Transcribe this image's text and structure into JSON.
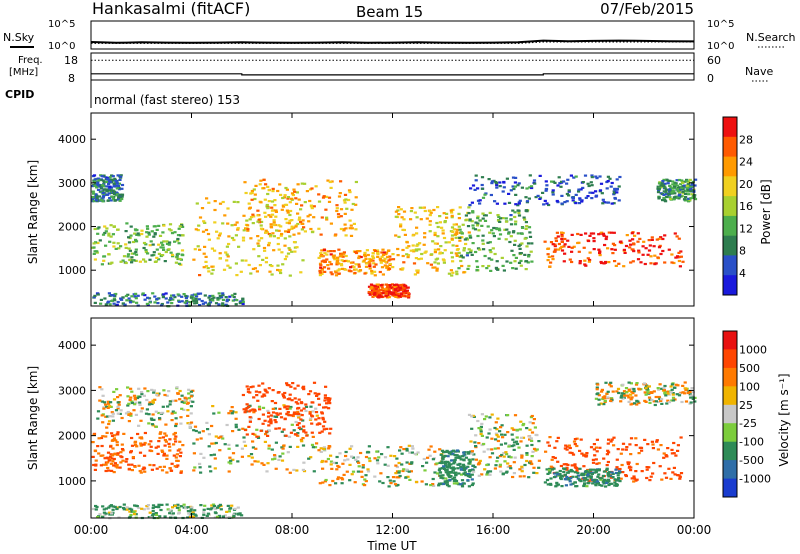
{
  "header": {
    "station": "Hankasalmi (fitACF)",
    "beam": "Beam 15",
    "date": "07/Feb/2015"
  },
  "top_panels": {
    "nsky_label": "N.Sky",
    "nsearch_label": "N.Search",
    "noise_ticks_left": [
      "10^5",
      "10^0"
    ],
    "noise_ticks_right": [
      "10^5",
      "10^0"
    ],
    "freq_label_line1": "Freq.",
    "freq_label_line2": "[MHz]",
    "freq_ticks": [
      "18",
      "8"
    ],
    "nave_label": "Nave",
    "nave_ticks": [
      "60",
      "0"
    ],
    "cpid_label": "CPID",
    "cpid_text": "normal (fast stereo) 153"
  },
  "colors": {
    "power_scale": [
      "#1a1adc",
      "#2a50c8",
      "#2e7d4f",
      "#4cae4c",
      "#a8d030",
      "#f0d020",
      "#ff9a00",
      "#ff5a00",
      "#ee1010"
    ],
    "velocity_scale": [
      "#1a3ccf",
      "#2f6ea8",
      "#2e8b57",
      "#7ccd3c",
      "#c8c8c8",
      "#f0b400",
      "#ff7a00",
      "#ff4500",
      "#e81010"
    ]
  },
  "chart_data": [
    {
      "type": "line",
      "title": "N.Sky",
      "x": [
        0,
        1,
        2,
        3,
        4,
        5,
        6,
        7,
        8,
        9,
        10,
        11,
        12,
        13,
        14,
        15,
        16,
        17,
        18,
        19,
        20,
        21,
        22,
        23,
        24
      ],
      "series": [
        {
          "name": "N.Sky",
          "values": [
            0.25,
            0.22,
            0.24,
            0.23,
            0.22,
            0.23,
            0.24,
            0.23,
            0.22,
            0.23,
            0.24,
            0.22,
            0.23,
            0.24,
            0.23,
            0.22,
            0.23,
            0.24,
            0.3,
            0.28,
            0.29,
            0.3,
            0.29,
            0.28,
            0.27
          ]
        },
        {
          "name": "N.Search",
          "values": [
            0.2,
            0.2,
            0.2,
            0.2,
            0.2,
            0.2,
            0.2,
            0.2,
            0.2,
            0.2,
            0.2,
            0.2,
            0.2,
            0.2,
            0.2,
            0.2,
            0.2,
            0.2,
            0.25,
            0.25,
            0.25,
            0.25,
            0.25,
            0.25,
            0.25
          ]
        }
      ],
      "xlim": [
        0,
        24
      ],
      "ylim": [
        0,
        1
      ]
    },
    {
      "type": "line",
      "title": "Freq.",
      "x": [
        0,
        6,
        6,
        18,
        18,
        24
      ],
      "series": [
        {
          "name": "Freq.",
          "values": [
            10.3,
            10.3,
            9.9,
            9.9,
            10.3,
            10.3
          ]
        },
        {
          "name": "Nave",
          "values": [
            35,
            35,
            35,
            35,
            35,
            35
          ]
        }
      ],
      "xlabel": "",
      "ylabel": "[MHz]",
      "xlim": [
        0,
        24
      ],
      "ylim": [
        8,
        18
      ]
    },
    {
      "type": "heatmap",
      "xlabel": "",
      "ylabel": "Slant Range [km]",
      "colorbar_label": "Power [dB]",
      "colorbar_ticks": [
        "28",
        "24",
        "20",
        "16",
        "12",
        "8",
        "4"
      ],
      "xlim": [
        0,
        24
      ],
      "ylim": [
        180,
        4600
      ],
      "y_ticks": [
        "4000",
        "3000",
        "2000",
        "1000"
      ],
      "x_ticks": [
        "00:00",
        "04:00",
        "08:00",
        "12:00",
        "16:00",
        "20:00",
        "00:00"
      ],
      "echo_regions": [
        {
          "x": [
            0.0,
            3.6
          ],
          "y": [
            1150,
            2100
          ],
          "value": 14
        },
        {
          "x": [
            0.0,
            1.2
          ],
          "y": [
            2600,
            3200
          ],
          "value": 8
        },
        {
          "x": [
            4.0,
            8.5
          ],
          "y": [
            900,
            2700
          ],
          "value": 20
        },
        {
          "x": [
            6.0,
            10.5
          ],
          "y": [
            1800,
            3100
          ],
          "value": 22
        },
        {
          "x": [
            9.0,
            12.0
          ],
          "y": [
            900,
            1500
          ],
          "value": 24
        },
        {
          "x": [
            11.0,
            12.6
          ],
          "y": [
            400,
            700
          ],
          "value": 28
        },
        {
          "x": [
            12.0,
            15.0
          ],
          "y": [
            900,
            2500
          ],
          "value": 20
        },
        {
          "x": [
            14.5,
            17.5
          ],
          "y": [
            1000,
            2400
          ],
          "value": 12
        },
        {
          "x": [
            15.0,
            21.0
          ],
          "y": [
            2500,
            3200
          ],
          "value": 6
        },
        {
          "x": [
            18.0,
            23.5
          ],
          "y": [
            1100,
            1900
          ],
          "value": 28
        },
        {
          "x": [
            22.5,
            24.0
          ],
          "y": [
            2600,
            3100
          ],
          "value": 10
        },
        {
          "x": [
            0.0,
            6.0
          ],
          "y": [
            200,
            500
          ],
          "value": 8
        }
      ]
    },
    {
      "type": "heatmap",
      "xlabel": "Time UT",
      "ylabel": "Slant Range [km]",
      "colorbar_label": "Velocity [m s⁻¹]",
      "colorbar_ticks": [
        "1000",
        "500",
        "100",
        "25",
        "-25",
        "-100",
        "-500",
        "-1000"
      ],
      "xlim": [
        0,
        24
      ],
      "ylim": [
        180,
        4600
      ],
      "y_ticks": [
        "4000",
        "3000",
        "2000",
        "1000"
      ],
      "x_ticks": [
        "00:00",
        "04:00",
        "08:00",
        "12:00",
        "16:00",
        "20:00",
        "00:00"
      ],
      "echo_regions": [
        {
          "x": [
            0.0,
            3.6
          ],
          "y": [
            1200,
            2100
          ],
          "value": -300
        },
        {
          "x": [
            0.2,
            4.0
          ],
          "y": [
            2200,
            3100
          ],
          "value": 0
        },
        {
          "x": [
            4.0,
            9.0
          ],
          "y": [
            1200,
            2700
          ],
          "value": 0
        },
        {
          "x": [
            6.0,
            9.5
          ],
          "y": [
            2000,
            3200
          ],
          "value": -500
        },
        {
          "x": [
            9.0,
            14.0
          ],
          "y": [
            900,
            1800
          ],
          "value": 0
        },
        {
          "x": [
            13.8,
            15.2
          ],
          "y": [
            900,
            1700
          ],
          "value": 200
        },
        {
          "x": [
            15.0,
            17.8
          ],
          "y": [
            1100,
            2500
          ],
          "value": 0
        },
        {
          "x": [
            18.0,
            23.5
          ],
          "y": [
            1000,
            2000
          ],
          "value": -400
        },
        {
          "x": [
            18.0,
            21.0
          ],
          "y": [
            900,
            1300
          ],
          "value": 200
        },
        {
          "x": [
            20.0,
            24.0
          ],
          "y": [
            2700,
            3200
          ],
          "value": 0
        },
        {
          "x": [
            0.0,
            6.0
          ],
          "y": [
            200,
            500
          ],
          "value": 100
        }
      ]
    }
  ]
}
